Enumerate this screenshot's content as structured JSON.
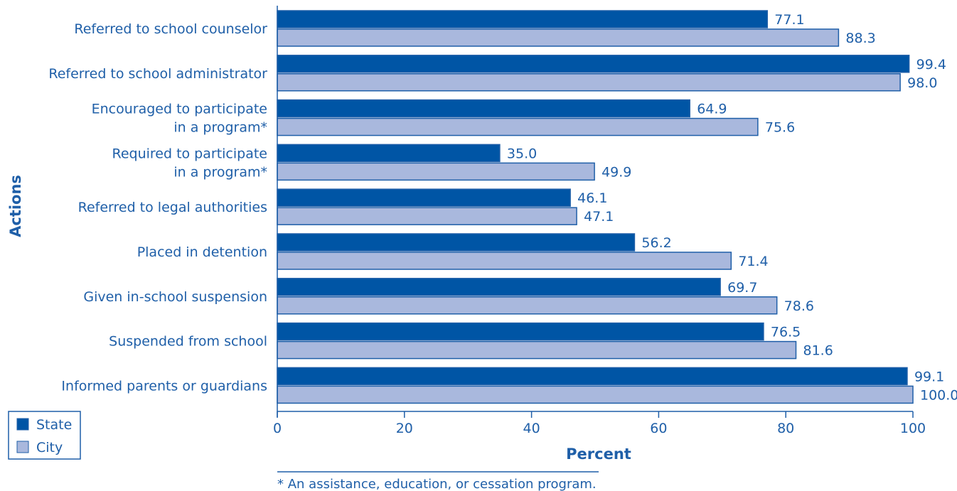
{
  "chart_data": {
    "type": "bar",
    "orientation": "horizontal",
    "categories": [
      "Referred to school counselor",
      "Referred to school administrator",
      "Encouraged to participate\nin a program*",
      "Required to participate\nin a program*",
      "Referred to legal authorities",
      "Placed in detention",
      "Given in-school suspension",
      "Suspended from school",
      "Informed parents or guardians"
    ],
    "series": [
      {
        "name": "State",
        "color": "#0055a5",
        "values": [
          77.1,
          99.4,
          64.9,
          35.0,
          46.1,
          56.2,
          69.7,
          76.5,
          99.1
        ],
        "labels": [
          "77.1",
          "99.4",
          "64.9",
          "35.0",
          "46.1",
          "56.2",
          "69.7",
          "76.5",
          "99.1"
        ]
      },
      {
        "name": "City",
        "color": "#a9b8dd",
        "values": [
          88.3,
          98.0,
          75.6,
          49.9,
          47.1,
          71.4,
          78.6,
          81.6,
          100.0
        ],
        "labels": [
          "88.3",
          "98.0",
          "75.6",
          "49.9",
          "47.1",
          "71.4",
          "78.6",
          "81.6",
          "100.0"
        ]
      }
    ],
    "xlabel": "Percent",
    "ylabel": "Actions",
    "xlim": [
      0,
      100
    ],
    "xticks": [
      "0",
      "20",
      "40",
      "60",
      "80",
      "100"
    ],
    "legend_position": "bottom-left",
    "footnote": "* An assistance, education, or cessation program.",
    "colors": {
      "text": "#1f5fa8",
      "border": "#1f5fa8"
    }
  }
}
